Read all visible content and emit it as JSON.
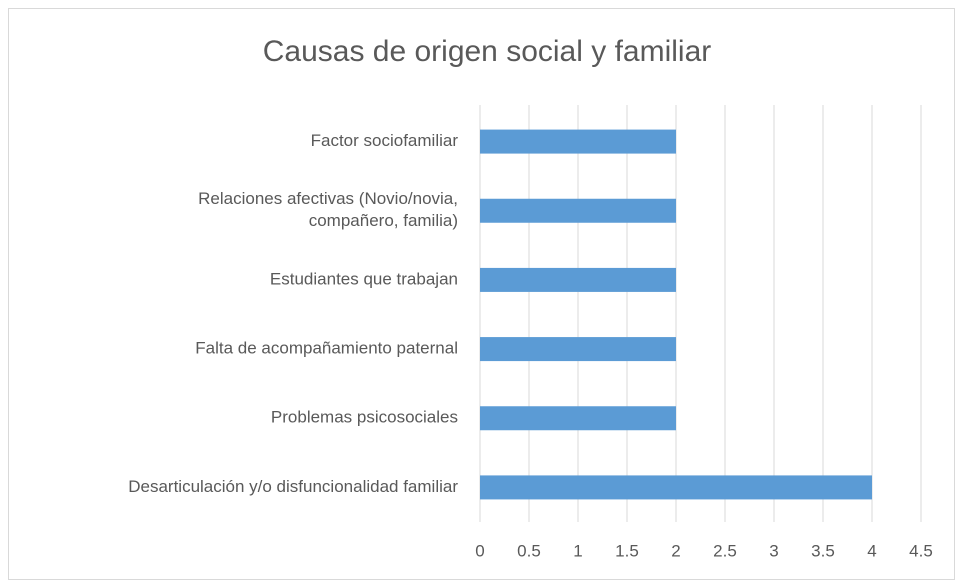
{
  "chart_data": {
    "type": "barh",
    "title": "Causas de origen social y familiar",
    "categories": [
      "Factor sociofamiliar",
      "Relaciones afectivas (Novio/novia,\ncompañero, familia)",
      "Estudiantes que trabajan",
      "Falta de acompañamiento paternal",
      "Problemas psicosociales",
      "Desarticulación y/o disfuncionalidad familiar"
    ],
    "values": [
      2,
      2,
      2,
      2,
      2,
      4
    ],
    "color": "#5b9bd5",
    "xlim": [
      0,
      4.5
    ],
    "xticks": [
      0,
      0.5,
      1,
      1.5,
      2,
      2.5,
      3,
      3.5,
      4,
      4.5
    ],
    "grid": true
  }
}
